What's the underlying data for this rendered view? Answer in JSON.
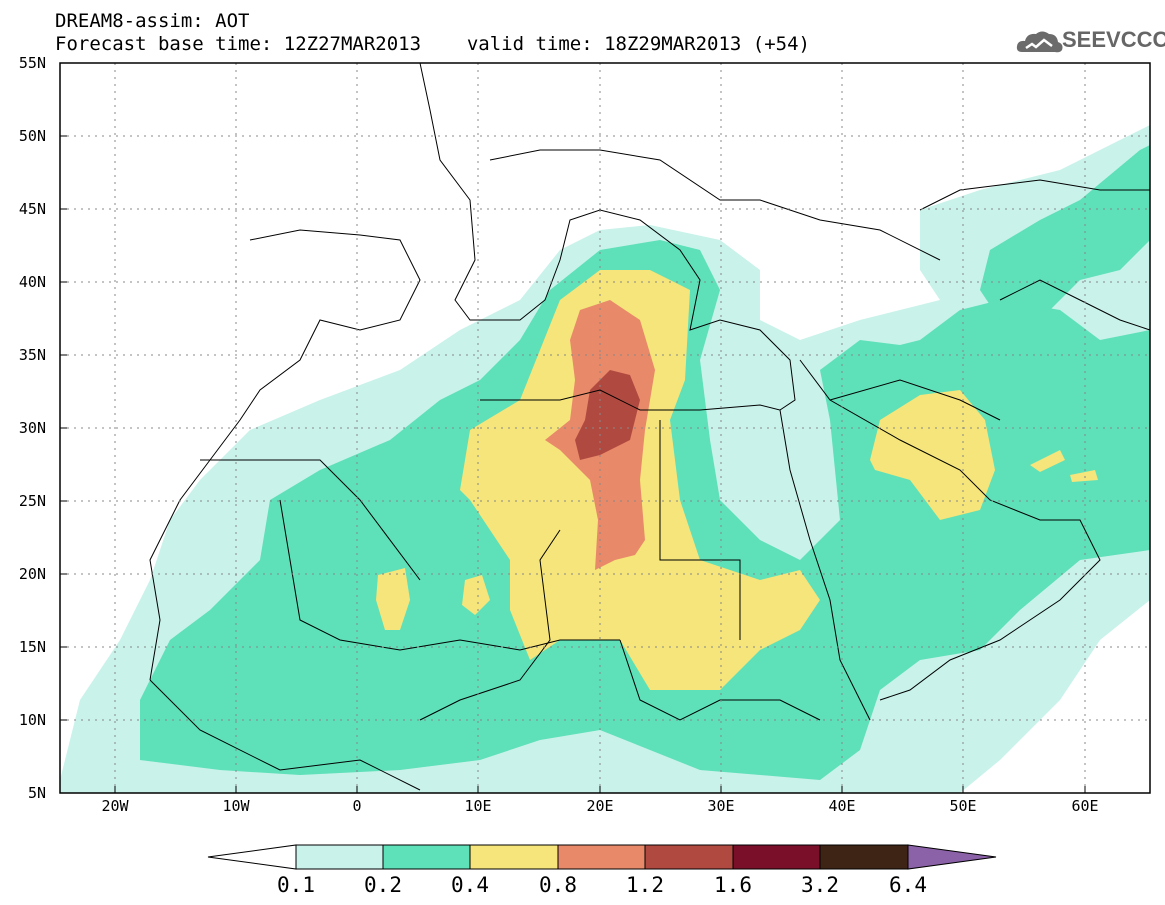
{
  "header": {
    "title": "DREAM8-assim: AOT",
    "base_time_label": "Forecast base time: 12Z27MAR2013",
    "valid_time_label": "valid time: 18Z29MAR2013 (+54)"
  },
  "logo": {
    "text": "SEEVCCC",
    "icon": "cloud-logo-icon"
  },
  "map": {
    "lon_range": [
      -25,
      65
    ],
    "lat_range": [
      5,
      55
    ],
    "lon_ticks": [
      "20W",
      "10W",
      "0",
      "10E",
      "20E",
      "30E",
      "40E",
      "50E",
      "60E"
    ],
    "lat_ticks": [
      "55N",
      "50N",
      "45N",
      "40N",
      "35N",
      "30N",
      "25N",
      "20N",
      "15N",
      "10N",
      "5N"
    ]
  },
  "colorbar": {
    "labels": [
      "0.1",
      "0.2",
      "0.4",
      "0.8",
      "1.2",
      "1.6",
      "3.2",
      "6.4"
    ],
    "colors": [
      "#ffffff",
      "#c8f2ea",
      "#5ee0b8",
      "#f5e57a",
      "#e8896a",
      "#b04a40",
      "#7a0f2a",
      "#3d2414",
      "#8b62a8"
    ]
  }
}
